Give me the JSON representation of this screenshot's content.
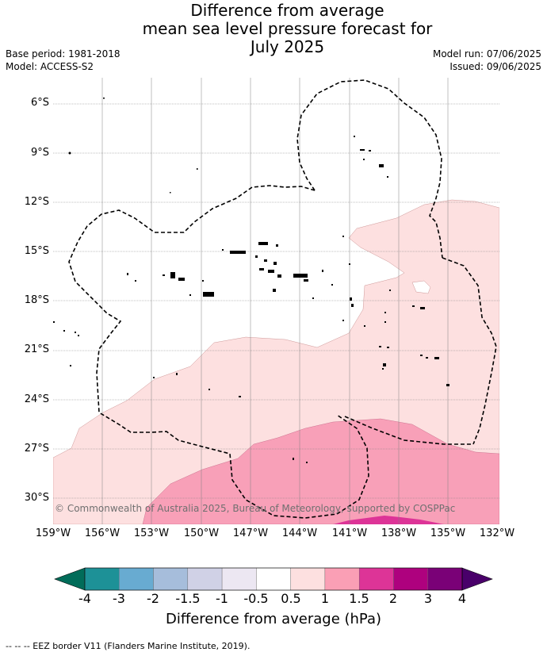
{
  "title": {
    "line1": "Difference from average",
    "line2": "mean sea level pressure forecast for",
    "line3": "July 2025"
  },
  "meta": {
    "base_period": "Base period: 1981-2018",
    "model": "Model: ACCESS-S2",
    "model_run": "Model run: 07/06/2025",
    "issued": "Issued: 09/06/2025"
  },
  "map": {
    "lat_labels": [
      "6°S",
      "9°S",
      "12°S",
      "15°S",
      "18°S",
      "21°S",
      "24°S",
      "27°S",
      "30°S"
    ],
    "lon_labels": [
      "159°W",
      "156°W",
      "153°W",
      "150°W",
      "147°W",
      "144°W",
      "141°W",
      "138°W",
      "135°W",
      "132°W"
    ],
    "copyright": "© Commonwealth of Australia 2025, Bureau of Meteorology, supported by COSPPac",
    "shading_colors": {
      "0.5_to_1": "#fde0e0",
      "1_to_1.5": "#f8a0b8",
      "1.5_to_2": "#dd3497"
    }
  },
  "colorbar": {
    "ticks": [
      "-4",
      "-3",
      "-2",
      "-1.5",
      "-1",
      "-0.5",
      "0.5",
      "1",
      "1.5",
      "2",
      "3",
      "4"
    ],
    "colors": [
      "#1d9197",
      "#68abd1",
      "#a6bddb",
      "#d0d1e6",
      "#ece7f2",
      "#ffffff",
      "#fde0e0",
      "#fa9fb5",
      "#dd3497",
      "#ae017e",
      "#7a0177"
    ],
    "low_extend_color": "#016c59",
    "high_extend_color": "#49006a",
    "label": "Difference from average (hPa)"
  },
  "footnote": "--  --  -- EEZ border V11 (Flanders Marine Institute, 2019)."
}
